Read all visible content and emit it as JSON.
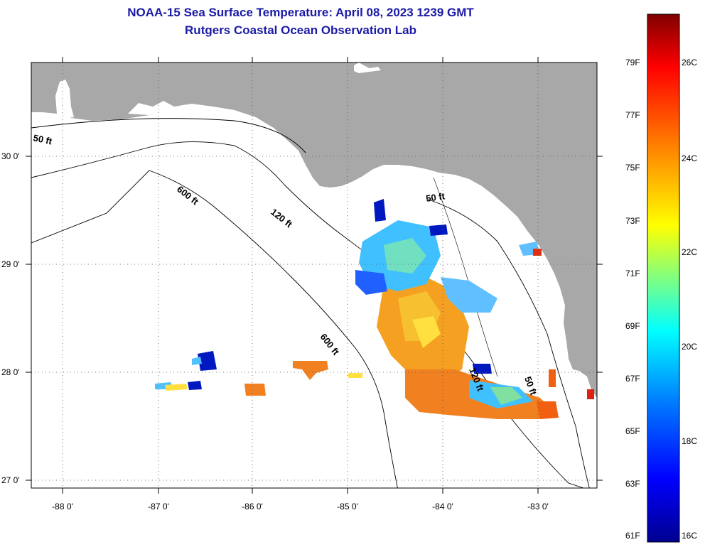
{
  "header": {
    "title": "NOAA-15 Sea Surface Temperature:  April 08, 2023 1239 GMT",
    "subtitle": "Rutgers Coastal Ocean Observation Lab"
  },
  "map": {
    "lat_labels": [
      "30 0'",
      "29 0'",
      "28 0'",
      "27 0'"
    ],
    "lon_labels": [
      "-88 0'",
      "-87 0'",
      "-86 0'",
      "-85 0'",
      "-84 0'",
      "-83 0'"
    ],
    "contour_labels": {
      "ft50_west": "50 ft",
      "ft50_east": "50 ft",
      "ft50_south": "50 ft",
      "ft120_north": "120 ft",
      "ft120_south": "120 ft",
      "ft600_north": "600 ft",
      "ft600_south": "600 ft"
    },
    "colors": {
      "land": "#a8a8a8",
      "ocean": "#ffffff",
      "title": "#1a1aa6"
    }
  },
  "colorbar": {
    "fahrenheit_labels": [
      "79F",
      "77F",
      "75F",
      "73F",
      "71F",
      "69F",
      "67F",
      "65F",
      "63F",
      "61F"
    ],
    "celsius_labels": [
      "26C",
      "24C",
      "22C",
      "20C",
      "18C",
      "16C"
    ],
    "colors": [
      "#00008f",
      "#0000ff",
      "#0080ff",
      "#00ffff",
      "#80ff80",
      "#ffff00",
      "#ff8000",
      "#ff0000",
      "#800000"
    ]
  }
}
